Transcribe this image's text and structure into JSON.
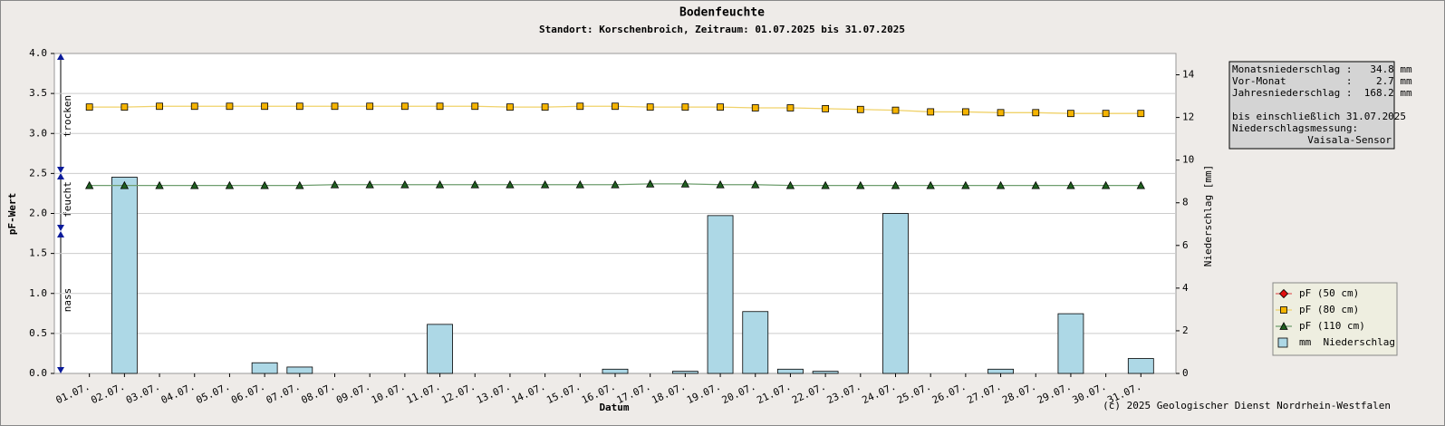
{
  "chart_data": {
    "type": "bar_line",
    "title": "Bodenfeuchte",
    "subtitle": "Standort: Korschenbroich, Zeitraum: 01.07.2025 bis 31.07.2025",
    "xlabel": "Datum",
    "ylabel": "pF-Wert",
    "y2label": "Niederschlag [mm]",
    "zones": [
      "trocken",
      "feucht",
      "nass"
    ],
    "footer": "(c) 2025 Geologischer Dienst Nordrhein-Westfalen",
    "info": {
      "lines": [
        "Monatsniederschlag :   34.8 mm",
        "Vor-Monat          :    2.7 mm",
        "Jahresniederschlag :  168.2 mm"
      ],
      "date_line": "bis einschließlich 31.07.2025",
      "measurement_label": "Niederschlagsmessung:",
      "sensor": "Vaisala-Sensor"
    },
    "categories": [
      "01.07.",
      "02.07.",
      "03.07.",
      "04.07.",
      "05.07.",
      "06.07.",
      "07.07.",
      "08.07.",
      "09.07.",
      "10.07.",
      "11.07.",
      "12.07.",
      "13.07.",
      "14.07.",
      "15.07.",
      "16.07.",
      "17.07.",
      "18.07.",
      "19.07.",
      "20.07.",
      "21.07.",
      "22.07.",
      "23.07.",
      "24.07.",
      "25.07.",
      "26.07.",
      "27.07.",
      "28.07.",
      "29.07.",
      "30.07.",
      "31.07."
    ],
    "ylim": [
      0,
      4
    ],
    "yticks": [
      {
        "value": 0,
        "label": "0.0"
      },
      {
        "value": 0.5,
        "label": "0.5"
      },
      {
        "value": 1,
        "label": "1.0"
      },
      {
        "value": 1.5,
        "label": "1.5"
      },
      {
        "value": 2,
        "label": "2.0"
      },
      {
        "value": 2.5,
        "label": "2.5"
      },
      {
        "value": 3,
        "label": "3.0"
      },
      {
        "value": 3.5,
        "label": "3.5"
      },
      {
        "value": 4,
        "label": "4.0"
      }
    ],
    "y2lim": [
      0,
      15
    ],
    "y2ticks": [
      0,
      2,
      4,
      6,
      8,
      10,
      12,
      14
    ],
    "grid": true,
    "legend": "lower right",
    "series": [
      {
        "name": "pF (50 cm)",
        "kind": "line",
        "marker": "diamond",
        "color": "#e01010",
        "line_color": "#e06060",
        "values": [
          null,
          null,
          null,
          null,
          null,
          null,
          null,
          null,
          null,
          null,
          null,
          null,
          null,
          null,
          null,
          null,
          null,
          null,
          null,
          null,
          null,
          null,
          null,
          null,
          null,
          null,
          null,
          null,
          null,
          null,
          null
        ]
      },
      {
        "name": "pF (80 cm)",
        "kind": "line",
        "marker": "square",
        "color": "#f5b400",
        "line_color": "#f0d26a",
        "values": [
          3.33,
          3.33,
          3.34,
          3.34,
          3.34,
          3.34,
          3.34,
          3.34,
          3.34,
          3.34,
          3.34,
          3.34,
          3.33,
          3.33,
          3.34,
          3.34,
          3.33,
          3.33,
          3.33,
          3.32,
          3.32,
          3.31,
          3.3,
          3.29,
          3.27,
          3.27,
          3.26,
          3.26,
          3.25,
          3.25,
          3.25
        ]
      },
      {
        "name": "pF (110 cm)",
        "kind": "line",
        "marker": "triangle",
        "color": "#1f5f1f",
        "line_color": "#6e9e6e",
        "values": [
          2.35,
          2.35,
          2.35,
          2.35,
          2.35,
          2.35,
          2.35,
          2.36,
          2.36,
          2.36,
          2.36,
          2.36,
          2.36,
          2.36,
          2.36,
          2.36,
          2.37,
          2.37,
          2.36,
          2.36,
          2.35,
          2.35,
          2.35,
          2.35,
          2.35,
          2.35,
          2.35,
          2.35,
          2.35,
          2.35,
          2.35
        ]
      },
      {
        "name": "mm  Niederschlag",
        "kind": "bar",
        "axis": "y2",
        "color": "#add8e6",
        "values": [
          0,
          9.2,
          0,
          0,
          0,
          0.5,
          0.3,
          0,
          0,
          0,
          2.3,
          0,
          0,
          0,
          0,
          0.2,
          0,
          0.1,
          7.4,
          2.9,
          0.2,
          0.1,
          0,
          7.5,
          0,
          0,
          0.2,
          0,
          2.8,
          0,
          0.7
        ]
      }
    ]
  }
}
